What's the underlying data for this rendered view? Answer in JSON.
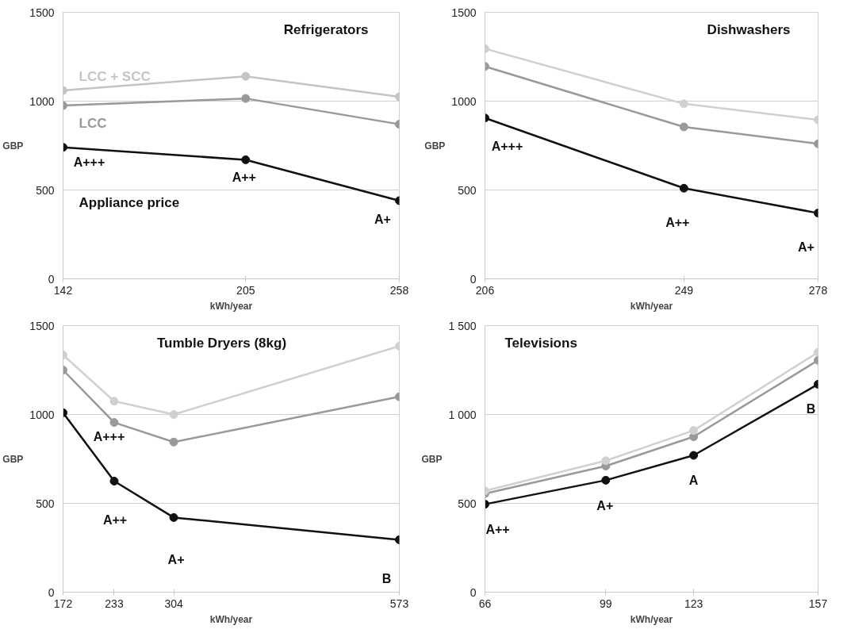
{
  "chart_data": [
    {
      "type": "line",
      "title": "Refrigerators",
      "xlabel": "kWh/year",
      "ylabel": "GBP",
      "x": [
        142,
        205,
        258
      ],
      "xlim": [
        142,
        258
      ],
      "xticks": [
        142,
        205,
        258
      ],
      "ylim": [
        0,
        1500
      ],
      "yticks": [
        0,
        500,
        1000,
        1500
      ],
      "grid": "y",
      "marker": "circle",
      "line_style": "solid",
      "series": [
        {
          "name": "Appliance price",
          "color": "#111111",
          "values": [
            740,
            670,
            440
          ]
        },
        {
          "name": "LCC",
          "color": "#999999",
          "values": [
            975,
            1015,
            870
          ]
        },
        {
          "name": "LCC + SCC",
          "color": "#c4c4c4",
          "values": [
            1060,
            1140,
            1025
          ]
        }
      ],
      "annotations": [
        {
          "text": "A+++",
          "x": 142,
          "y": 740
        },
        {
          "text": "A++",
          "x": 205,
          "y": 670
        },
        {
          "text": "A+",
          "x": 258,
          "y": 440
        }
      ]
    },
    {
      "type": "line",
      "title": "Dishwashers",
      "xlabel": "kWh/year",
      "ylabel": "GBP",
      "x": [
        206,
        249,
        278
      ],
      "xlim": [
        206,
        278
      ],
      "xticks": [
        206,
        249,
        278
      ],
      "ylim": [
        0,
        1500
      ],
      "yticks": [
        0,
        500,
        1000,
        1500
      ],
      "grid": "y",
      "marker": "circle",
      "line_style": "solid",
      "series": [
        {
          "color": "#111111",
          "values": [
            905,
            510,
            370
          ]
        },
        {
          "color": "#999999",
          "values": [
            1195,
            855,
            760
          ]
        },
        {
          "color": "#d0d0d0",
          "values": [
            1295,
            985,
            895
          ]
        }
      ],
      "annotations": [
        {
          "text": "A+++",
          "x": 206,
          "y": 905
        },
        {
          "text": "A++",
          "x": 249,
          "y": 510
        },
        {
          "text": "A+",
          "x": 278,
          "y": 370
        }
      ]
    },
    {
      "type": "line",
      "title": "Tumble Dryers (8kg)",
      "xlabel": "kWh/year",
      "ylabel": "GBP",
      "x": [
        172,
        233,
        304,
        573
      ],
      "xlim": [
        172,
        573
      ],
      "xticks": [
        172,
        233,
        304,
        573
      ],
      "ylim": [
        0,
        1500
      ],
      "yticks": [
        0,
        500,
        1000,
        1500
      ],
      "grid": "y",
      "marker": "circle",
      "line_style": "solid",
      "series": [
        {
          "color": "#111111",
          "values": [
            1010,
            625,
            420,
            295
          ]
        },
        {
          "color": "#999999",
          "values": [
            1250,
            955,
            845,
            1100
          ]
        },
        {
          "color": "#d0d0d0",
          "values": [
            1335,
            1075,
            1000,
            1385
          ]
        }
      ],
      "annotations": [
        {
          "text": "A+++",
          "x": 172,
          "y": 1010
        },
        {
          "text": "A++",
          "x": 233,
          "y": 625
        },
        {
          "text": "A+",
          "x": 304,
          "y": 420
        },
        {
          "text": "B",
          "x": 573,
          "y": 295
        }
      ]
    },
    {
      "type": "line",
      "title": "Televisions",
      "xlabel": "kWh/year",
      "ylabel": "GBP",
      "x": [
        66,
        99,
        123,
        157
      ],
      "xlim": [
        66,
        157
      ],
      "xticks": [
        66,
        99,
        123,
        157
      ],
      "ylim": [
        0,
        1500
      ],
      "yticks": [
        0,
        500,
        {
          "value": 1000,
          "label": "1 000"
        },
        {
          "value": 1500,
          "label": "1 500"
        }
      ],
      "grid": "y",
      "marker": "circle",
      "line_style": "solid",
      "series": [
        {
          "color": "#111111",
          "values": [
            495,
            630,
            770,
            1170
          ]
        },
        {
          "color": "#999999",
          "values": [
            555,
            710,
            875,
            1305
          ]
        },
        {
          "color": "#d0d0d0",
          "values": [
            570,
            740,
            910,
            1350
          ]
        }
      ],
      "annotations": [
        {
          "text": "A++",
          "x": 66,
          "y": 495
        },
        {
          "text": "A+",
          "x": 99,
          "y": 630
        },
        {
          "text": "A",
          "x": 123,
          "y": 770
        },
        {
          "text": "B",
          "x": 157,
          "y": 1170
        }
      ]
    }
  ]
}
